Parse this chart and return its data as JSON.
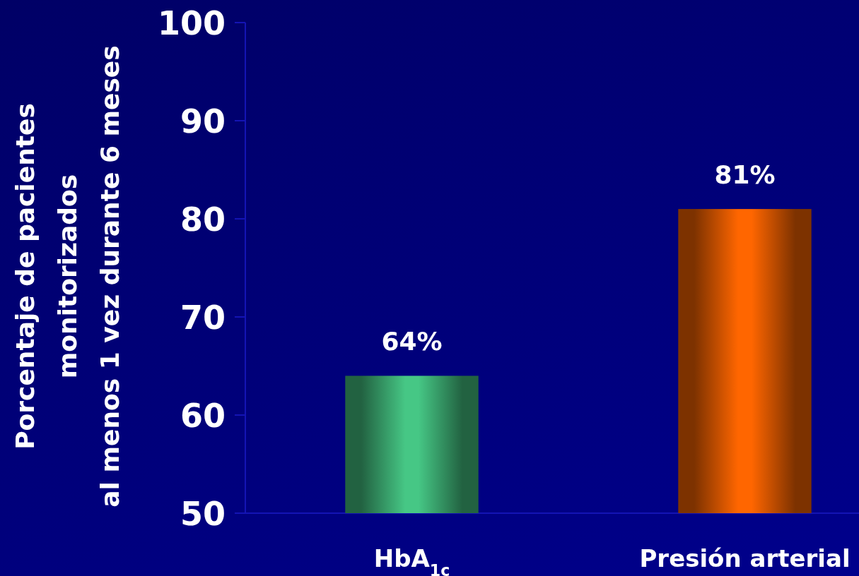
{
  "chart_data": {
    "type": "bar",
    "ylabel": "Porcentaje de pacientes\nmonitorizados\nal menos 1 vez durante 6 meses",
    "categories": [
      "HbA$_{1c}$",
      "Presión arterial"
    ],
    "values": [
      64,
      81
    ],
    "colors": [
      "#46c785",
      "#ff6600"
    ],
    "value_labels": [
      "64%",
      "81%"
    ],
    "ylim": [
      50,
      100
    ],
    "yticks": [
      50,
      60,
      70,
      80,
      90,
      100
    ]
  }
}
